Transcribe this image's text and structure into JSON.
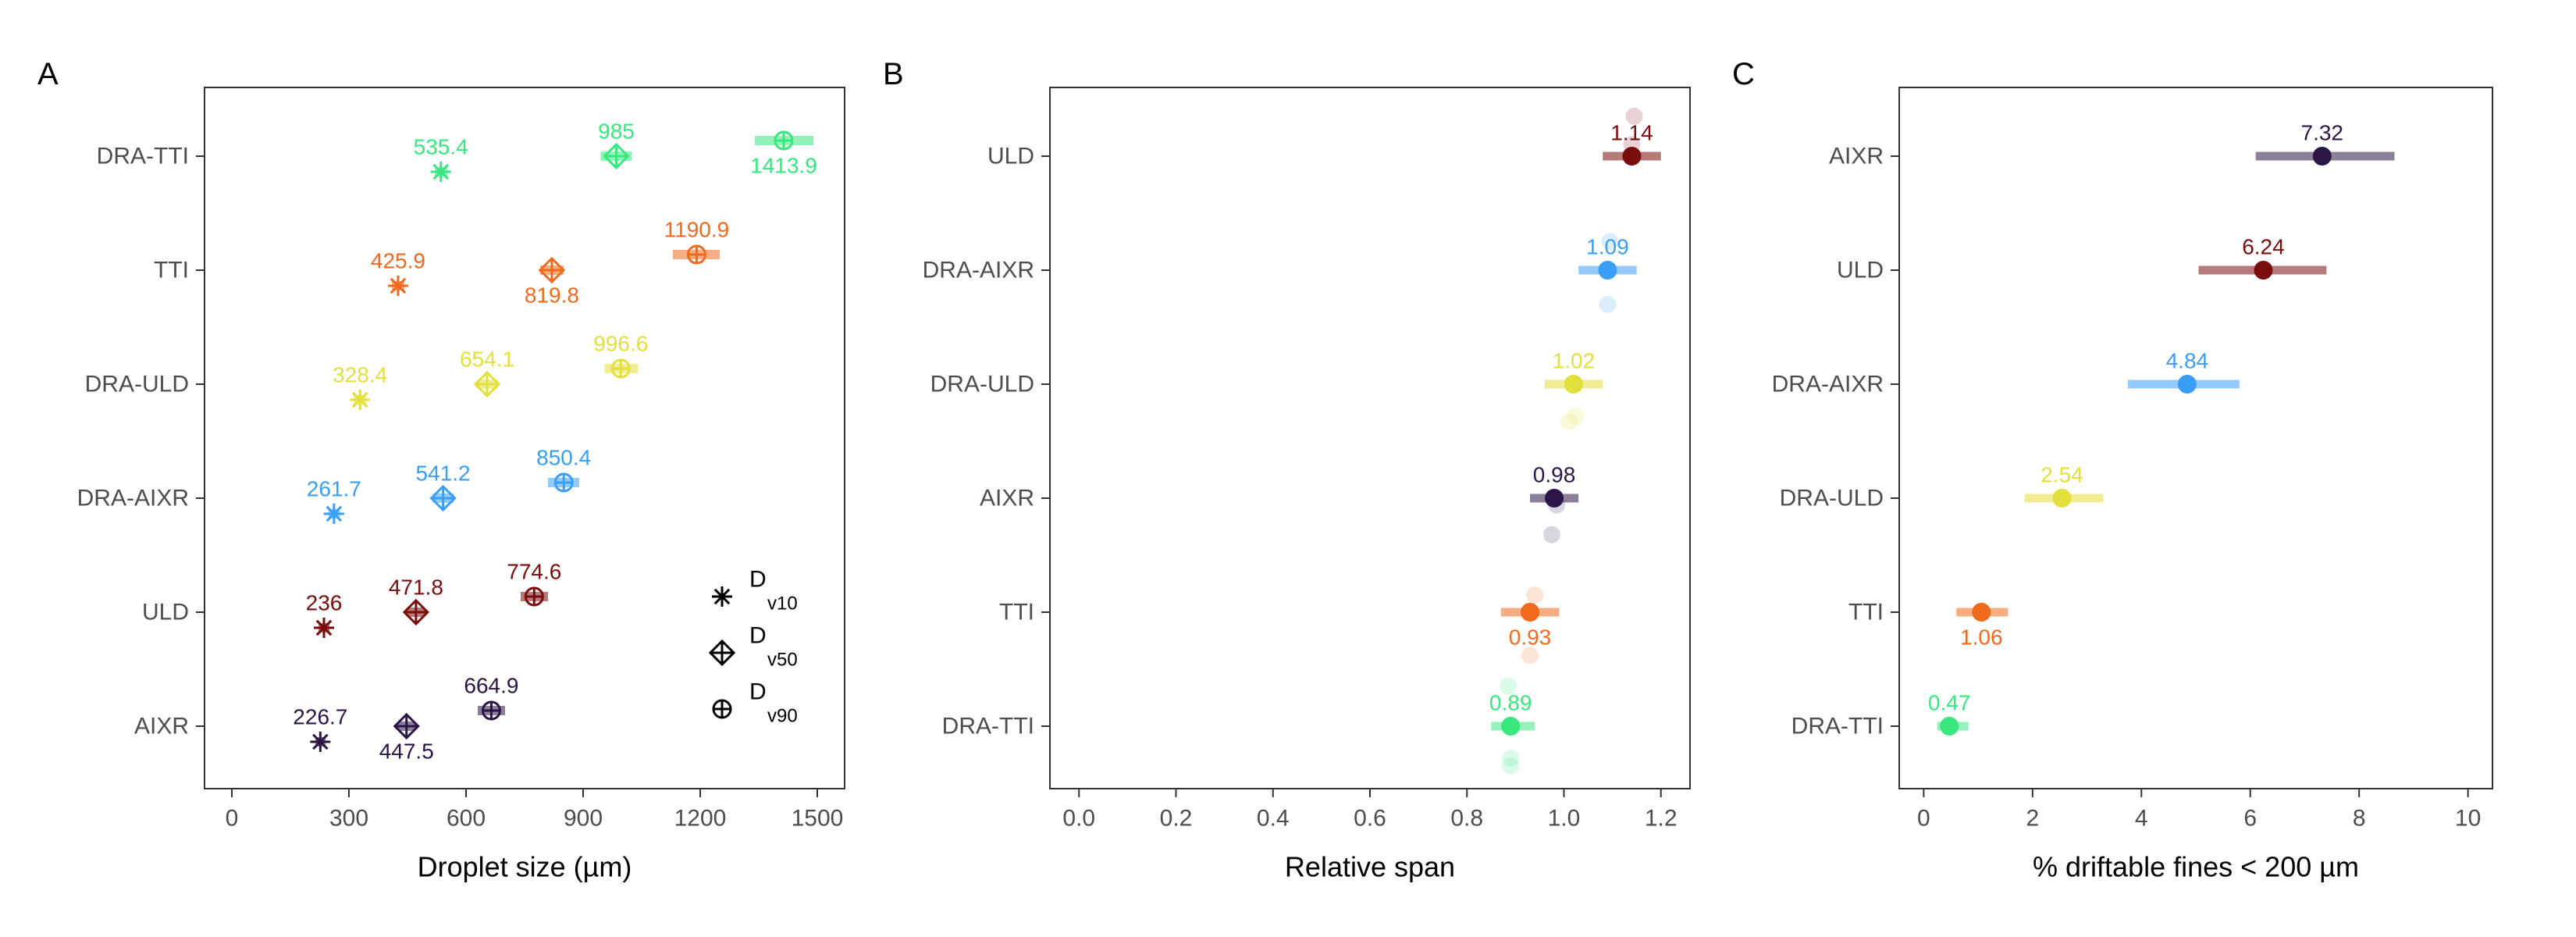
{
  "chart_data": [
    {
      "panel_label": "A",
      "type": "scatter",
      "xlabel": "Droplet size (µm)",
      "xlim": [
        -70,
        1570
      ],
      "xticks": [
        0,
        300,
        600,
        900,
        1200,
        1500
      ],
      "categories": [
        "DRA-TTI",
        "TTI",
        "DRA-ULD",
        "DRA-AIXR",
        "ULD",
        "AIXR"
      ],
      "series": [
        {
          "name": "Dv10",
          "marker": "asterisk",
          "points": [
            {
              "category": "DRA-TTI",
              "value": 535.4,
              "err": [
                520,
                552
              ],
              "label": "535.4",
              "label_pos": "above",
              "color": "#38e87e"
            },
            {
              "category": "TTI",
              "value": 425.9,
              "err": [
                410,
                442
              ],
              "label": "425.9",
              "label_pos": "above",
              "color": "#f06a1e"
            },
            {
              "category": "DRA-ULD",
              "value": 328.4,
              "err": [
                312,
                345
              ],
              "label": "328.4",
              "label_pos": "above",
              "color": "#e3df3c"
            },
            {
              "category": "DRA-AIXR",
              "value": 261.7,
              "err": [
                248,
                276
              ],
              "label": "261.7",
              "label_pos": "above",
              "color": "#3a9ef5"
            },
            {
              "category": "ULD",
              "value": 236,
              "err": [
                222,
                250
              ],
              "label": "236",
              "label_pos": "above",
              "color": "#7a0c0c"
            },
            {
              "category": "AIXR",
              "value": 226.7,
              "err": [
                214,
                240
              ],
              "label": "226.7",
              "label_pos": "above",
              "color": "#2b1547"
            }
          ]
        },
        {
          "name": "Dv50",
          "marker": "diamond-plus",
          "points": [
            {
              "category": "DRA-TTI",
              "value": 985,
              "err": [
                945,
                1025
              ],
              "label": "985",
              "label_pos": "above",
              "color": "#38e87e"
            },
            {
              "category": "TTI",
              "value": 819.8,
              "err": [
                790,
                850
              ],
              "label": "819.8",
              "label_pos": "below",
              "color": "#f06a1e"
            },
            {
              "category": "DRA-ULD",
              "value": 654.1,
              "err": [
                630,
                680
              ],
              "label": "654.1",
              "label_pos": "above",
              "color": "#e3df3c"
            },
            {
              "category": "DRA-AIXR",
              "value": 541.2,
              "err": [
                515,
                568
              ],
              "label": "541.2",
              "label_pos": "above",
              "color": "#3a9ef5"
            },
            {
              "category": "ULD",
              "value": 471.8,
              "err": [
                450,
                494
              ],
              "label": "471.8",
              "label_pos": "above",
              "color": "#7a0c0c"
            },
            {
              "category": "AIXR",
              "value": 447.5,
              "err": [
                425,
                470
              ],
              "label": "447.5",
              "label_pos": "below",
              "color": "#2b1547"
            }
          ]
        },
        {
          "name": "Dv90",
          "marker": "circle-plus",
          "points": [
            {
              "category": "DRA-TTI",
              "value": 1413.9,
              "err": [
                1340,
                1490
              ],
              "label": "1413.9",
              "label_pos": "below",
              "color": "#38e87e"
            },
            {
              "category": "TTI",
              "value": 1190.9,
              "err": [
                1130,
                1250
              ],
              "label": "1190.9",
              "label_pos": "above",
              "color": "#f06a1e"
            },
            {
              "category": "DRA-ULD",
              "value": 996.6,
              "err": [
                955,
                1040
              ],
              "label": "996.6",
              "label_pos": "above",
              "color": "#e3df3c"
            },
            {
              "category": "DRA-AIXR",
              "value": 850.4,
              "err": [
                810,
                890
              ],
              "label": "850.4",
              "label_pos": "above",
              "color": "#3a9ef5"
            },
            {
              "category": "ULD",
              "value": 774.6,
              "err": [
                740,
                810
              ],
              "label": "774.6",
              "label_pos": "above",
              "color": "#7a0c0c"
            },
            {
              "category": "AIXR",
              "value": 664.9,
              "err": [
                630,
                700
              ],
              "label": "664.9",
              "label_pos": "above",
              "color": "#2b1547"
            }
          ]
        }
      ],
      "legend": {
        "placement": "bottom-right inside",
        "entries": [
          {
            "marker": "asterisk",
            "main": "D",
            "sub": "v10"
          },
          {
            "marker": "diamond-plus",
            "main": "D",
            "sub": "v50"
          },
          {
            "marker": "circle-plus",
            "main": "D",
            "sub": "v90"
          }
        ]
      }
    },
    {
      "panel_label": "B",
      "type": "scatter",
      "xlabel": "Relative span",
      "xlim": [
        -0.06,
        1.26
      ],
      "xticks": [
        0.0,
        0.2,
        0.4,
        0.6,
        0.8,
        1.0,
        1.2
      ],
      "xtick_labels": [
        "0.0",
        "0.2",
        "0.4",
        "0.6",
        "0.8",
        "1.0",
        "1.2"
      ],
      "categories": [
        "ULD",
        "DRA-AIXR",
        "DRA-ULD",
        "AIXR",
        "TTI",
        "DRA-TTI"
      ],
      "points": [
        {
          "category": "ULD",
          "value": 1.14,
          "err": [
            1.08,
            1.2
          ],
          "label": "1.14",
          "label_pos": "above",
          "color": "#7a0c0c",
          "replicates": [
            {
              "value": 1.145,
              "offset": -0.35
            },
            {
              "value": 1.14,
              "offset": -0.1
            }
          ]
        },
        {
          "category": "DRA-AIXR",
          "value": 1.09,
          "err": [
            1.03,
            1.15
          ],
          "label": "1.09",
          "label_pos": "above",
          "color": "#3a9ef5",
          "replicates": [
            {
              "value": 1.095,
              "offset": -0.25
            },
            {
              "value": 1.09,
              "offset": 0.3
            }
          ]
        },
        {
          "category": "DRA-ULD",
          "value": 1.02,
          "err": [
            0.96,
            1.08
          ],
          "label": "1.02",
          "label_pos": "above",
          "color": "#e3df3c",
          "replicates": [
            {
              "value": 1.025,
              "offset": 0.28
            },
            {
              "value": 1.01,
              "offset": 0.33
            }
          ]
        },
        {
          "category": "AIXR",
          "value": 0.98,
          "err": [
            0.93,
            1.03
          ],
          "label": "0.98",
          "label_pos": "above",
          "color": "#2b1547",
          "replicates": [
            {
              "value": 0.985,
              "offset": 0.06
            },
            {
              "value": 0.975,
              "offset": 0.32
            }
          ]
        },
        {
          "category": "TTI",
          "value": 0.93,
          "err": [
            0.87,
            0.99
          ],
          "label": "0.93",
          "label_pos": "below",
          "color": "#f06a1e",
          "replicates": [
            {
              "value": 0.94,
              "offset": -0.15
            },
            {
              "value": 0.93,
              "offset": 0.38
            }
          ]
        },
        {
          "category": "DRA-TTI",
          "value": 0.89,
          "err": [
            0.85,
            0.94
          ],
          "label": "0.89",
          "label_pos": "above",
          "color": "#38e87e",
          "replicates": [
            {
              "value": 0.885,
              "offset": -0.35
            },
            {
              "value": 0.89,
              "offset": 0.28
            },
            {
              "value": 0.89,
              "offset": 0.35
            }
          ]
        }
      ]
    },
    {
      "panel_label": "C",
      "type": "scatter",
      "xlabel": "% driftable fines < 200 µm",
      "xlim": [
        -0.45,
        10.45
      ],
      "xticks": [
        0,
        2,
        4,
        6,
        8,
        10
      ],
      "categories": [
        "AIXR",
        "ULD",
        "DRA-AIXR",
        "DRA-ULD",
        "TTI",
        "DRA-TTI"
      ],
      "points": [
        {
          "category": "AIXR",
          "value": 7.32,
          "err": [
            6.1,
            8.65
          ],
          "label": "7.32",
          "label_pos": "above",
          "color": "#2b1547"
        },
        {
          "category": "ULD",
          "value": 6.24,
          "err": [
            5.05,
            7.4
          ],
          "label": "6.24",
          "label_pos": "above",
          "color": "#7a0c0c"
        },
        {
          "category": "DRA-AIXR",
          "value": 4.84,
          "err": [
            3.75,
            5.8
          ],
          "label": "4.84",
          "label_pos": "above",
          "color": "#3a9ef5"
        },
        {
          "category": "DRA-ULD",
          "value": 2.54,
          "err": [
            1.85,
            3.3
          ],
          "label": "2.54",
          "label_pos": "above",
          "color": "#e3df3c"
        },
        {
          "category": "TTI",
          "value": 1.06,
          "err": [
            0.6,
            1.55
          ],
          "label": "1.06",
          "label_pos": "below",
          "color": "#f06a1e"
        },
        {
          "category": "DRA-TTI",
          "value": 0.47,
          "err": [
            0.25,
            0.82
          ],
          "label": "0.47",
          "label_pos": "above",
          "color": "#38e87e"
        }
      ]
    }
  ]
}
